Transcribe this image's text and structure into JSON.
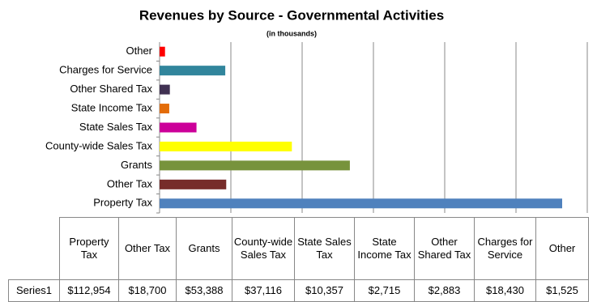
{
  "chart_data": {
    "type": "bar",
    "orientation": "horizontal",
    "title": "Revenues by Source - Governmental Activities",
    "subtitle": "(in thousands)",
    "categories": [
      "Property Tax",
      "Other Tax",
      "Grants",
      "County-wide Sales Tax",
      "State Sales Tax",
      "State Income Tax",
      "Other Shared Tax",
      "Charges for Service",
      "Other"
    ],
    "series": [
      {
        "name": "Series1",
        "values": [
          112954,
          18700,
          53388,
          37116,
          10357,
          2715,
          2883,
          18430,
          1525
        ],
        "value_labels": [
          "$112,954",
          "$18,700",
          "$53,388",
          "$37,116",
          "$10,357",
          "$2,715",
          "$2,883",
          "$18,430",
          "$1,525"
        ],
        "colors": [
          "#4f81bd",
          "#772c2a",
          "#77933c",
          "#ffff00",
          "#cc0099",
          "#e36c09",
          "#403152",
          "#31859c",
          "#ff0000"
        ]
      }
    ],
    "xlim": [
      0,
      120000
    ],
    "xticks": [
      0,
      20000,
      40000,
      60000,
      80000,
      100000,
      120000
    ],
    "grid": true
  }
}
